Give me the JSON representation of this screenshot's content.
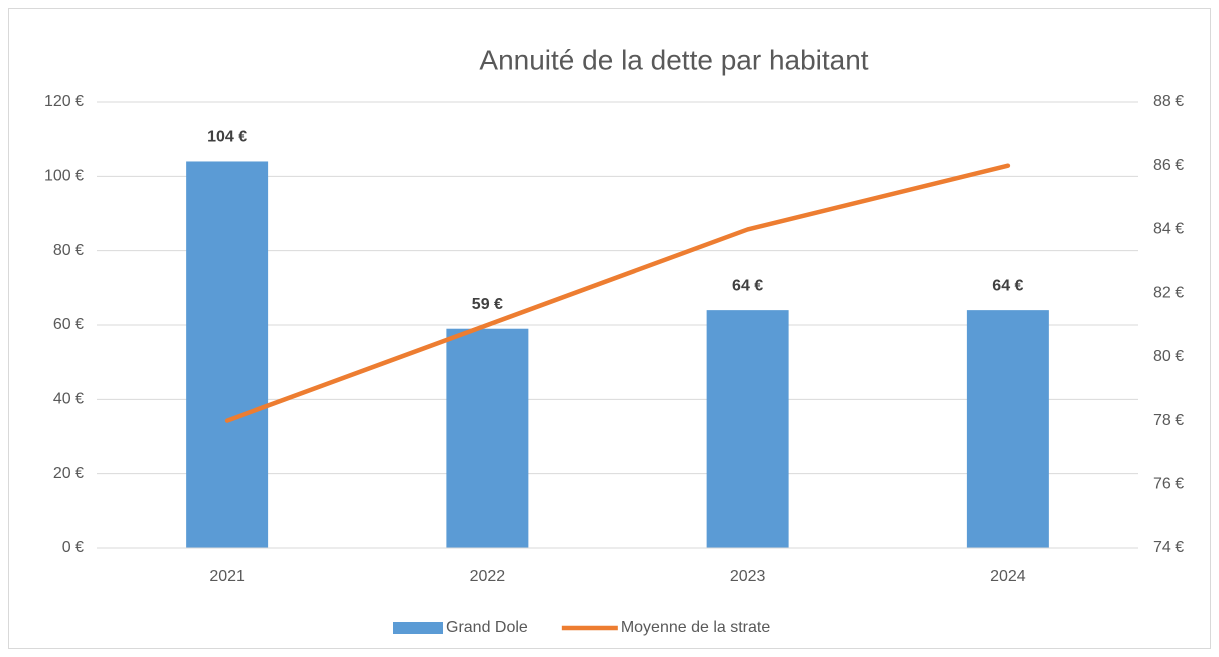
{
  "chart_data": {
    "type": "bar",
    "title": "Annuité de la dette par habitant",
    "categories": [
      "2021",
      "2022",
      "2023",
      "2024"
    ],
    "series": [
      {
        "name": "Grand Dole",
        "color": "#5b9bd5",
        "values": [
          104,
          59,
          64,
          64
        ],
        "value_labels": [
          "104 €",
          "59 €",
          "64 €",
          "64 €"
        ]
      },
      {
        "name": "Moyenne de la strate",
        "color": "#ed7d31",
        "type": "line",
        "axis": "y2",
        "values": [
          78,
          81,
          84,
          86
        ]
      }
    ],
    "ylim": [
      0,
      120
    ],
    "yticks": [
      {
        "value": 0,
        "label": "0 €"
      },
      {
        "value": 20,
        "label": "20 €"
      },
      {
        "value": 40,
        "label": "40 €"
      },
      {
        "value": 60,
        "label": "60 €"
      },
      {
        "value": 80,
        "label": "80 €"
      },
      {
        "value": 100,
        "label": "100 €"
      },
      {
        "value": 120,
        "label": "120 €"
      }
    ],
    "y2lim": [
      74,
      88
    ],
    "y2ticks": [
      {
        "value": 74,
        "label": "74 €"
      },
      {
        "value": 76,
        "label": "76 €"
      },
      {
        "value": 78,
        "label": "78 €"
      },
      {
        "value": 80,
        "label": "80 €"
      },
      {
        "value": 82,
        "label": "82 €"
      },
      {
        "value": 84,
        "label": "84 €"
      },
      {
        "value": 86,
        "label": "86 €"
      },
      {
        "value": 88,
        "label": "88 €"
      }
    ],
    "grid": true,
    "legend": "bottom"
  }
}
